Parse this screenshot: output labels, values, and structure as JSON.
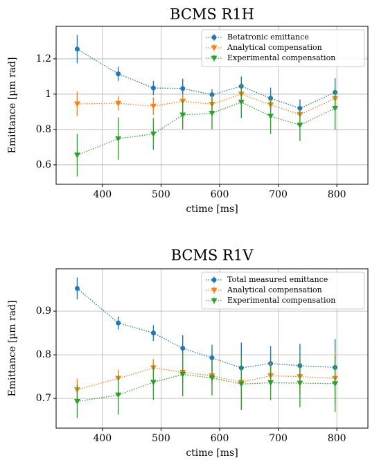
{
  "chart_data": [
    {
      "type": "line",
      "title": "BCMS R1H",
      "xlabel": "ctime [ms]",
      "ylabel": "Emittance [µm rad]",
      "x": [
        357,
        427,
        487,
        537,
        587,
        637,
        687,
        737,
        797
      ],
      "xlim": [
        321,
        853
      ],
      "xticks": [
        400,
        500,
        600,
        700,
        800
      ],
      "ylim": [
        0.49,
        1.384
      ],
      "yticks": [
        0.6,
        0.8,
        1.0,
        1.2
      ],
      "grid": true,
      "legend": "upper right",
      "series": [
        {
          "name": "Betatronic emittance",
          "color": "#1f77b4",
          "marker": "circle",
          "values": [
            1.255,
            1.115,
            1.035,
            1.032,
            0.997,
            1.045,
            0.977,
            0.92,
            1.01
          ],
          "errors": [
            0.08,
            0.04,
            0.04,
            0.055,
            0.03,
            0.055,
            0.06,
            0.05,
            0.08
          ]
        },
        {
          "name": "Analytical compensation",
          "color": "#ff7f0e",
          "marker": "triangle-down",
          "values": [
            0.945,
            0.948,
            0.932,
            0.96,
            0.943,
            1.0,
            0.94,
            0.885,
            0.975
          ],
          "errors": [
            0.07,
            0.04,
            0.05,
            0.04,
            0.05,
            0.05,
            0.04,
            0.03,
            0.04
          ]
        },
        {
          "name": "Experimental compensation",
          "color": "#2ca02c",
          "marker": "triangle-down",
          "values": [
            0.655,
            0.748,
            0.775,
            0.882,
            0.892,
            0.955,
            0.875,
            0.825,
            0.92
          ],
          "errors": [
            0.12,
            0.12,
            0.09,
            0.08,
            0.09,
            0.09,
            0.1,
            0.09,
            0.12
          ]
        }
      ]
    },
    {
      "type": "line",
      "title": "BCMS R1V",
      "xlabel": "ctime [ms]",
      "ylabel": "Emittance [µm rad]",
      "x": [
        357,
        427,
        487,
        537,
        587,
        637,
        687,
        737,
        797
      ],
      "xlim": [
        321,
        853
      ],
      "xticks": [
        400,
        500,
        600,
        700,
        800
      ],
      "ylim": [
        0.632,
        0.997
      ],
      "yticks": [
        0.7,
        0.8,
        0.9
      ],
      "grid": true,
      "legend": "upper right",
      "series": [
        {
          "name": "Total measured emittance",
          "color": "#1f77b4",
          "marker": "circle",
          "values": [
            0.952,
            0.873,
            0.85,
            0.815,
            0.793,
            0.77,
            0.78,
            0.775,
            0.771
          ],
          "errors": [
            0.025,
            0.015,
            0.018,
            0.03,
            0.03,
            0.058,
            0.04,
            0.05,
            0.065
          ]
        },
        {
          "name": "Analytical compensation",
          "color": "#ff7f0e",
          "marker": "triangle-down",
          "values": [
            0.72,
            0.746,
            0.77,
            0.76,
            0.752,
            0.737,
            0.752,
            0.75,
            0.746
          ],
          "errors": [
            0.025,
            0.02,
            0.02,
            0.03,
            0.02,
            0.03,
            0.03,
            0.04,
            0.06
          ]
        },
        {
          "name": "Experimental compensation",
          "color": "#2ca02c",
          "marker": "triangle-down",
          "values": [
            0.693,
            0.708,
            0.737,
            0.755,
            0.747,
            0.733,
            0.736,
            0.735,
            0.734
          ],
          "errors": [
            0.038,
            0.045,
            0.04,
            0.05,
            0.04,
            0.06,
            0.04,
            0.055,
            0.065
          ]
        }
      ]
    }
  ]
}
